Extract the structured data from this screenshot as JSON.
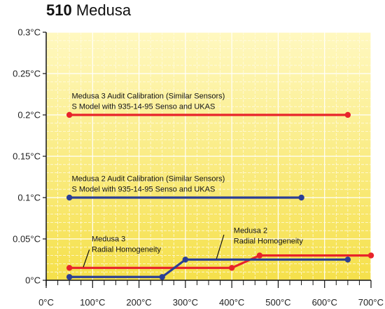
{
  "title_bold": "510",
  "title_rest": "Medusa",
  "chart_data": {
    "type": "line",
    "title": "510 Medusa",
    "xlabel": "",
    "ylabel": "",
    "xlim": [
      0,
      700
    ],
    "ylim": [
      0,
      0.3
    ],
    "x_ticks": [
      0,
      100,
      200,
      300,
      400,
      500,
      600,
      700
    ],
    "x_tick_labels": [
      "0°C",
      "100°C",
      "200°C",
      "300°C",
      "400°C",
      "500°C",
      "600°C",
      "700°C"
    ],
    "y_ticks": [
      0,
      0.05,
      0.1,
      0.15,
      0.2,
      0.25,
      0.3
    ],
    "y_tick_labels": [
      "0°C",
      "0.05°C",
      "0.1°C",
      "0.15°C",
      "0.2°C",
      "0.25°C",
      "0.3°C"
    ],
    "grid": true,
    "colors": {
      "red": "#e8232a",
      "blue": "#2b3f95",
      "grid": "#ffffff",
      "bg_top": "#fff8c0",
      "bg_bottom": "#f5e04a"
    },
    "series": [
      {
        "color": "#e8232a",
        "points": [
          [
            50,
            0.2
          ],
          [
            650,
            0.2
          ]
        ],
        "markers": [
          [
            50,
            0.2
          ],
          [
            650,
            0.2
          ]
        ]
      },
      {
        "color": "#2b3f95",
        "points": [
          [
            50,
            0.1
          ],
          [
            550,
            0.1
          ]
        ],
        "markers": [
          [
            50,
            0.1
          ],
          [
            550,
            0.1
          ]
        ]
      },
      {
        "color": "#e8232a",
        "points": [
          [
            50,
            0.015
          ],
          [
            400,
            0.015
          ],
          [
            460,
            0.03
          ],
          [
            700,
            0.03
          ]
        ],
        "markers": [
          [
            50,
            0.015
          ],
          [
            400,
            0.015
          ],
          [
            460,
            0.03
          ],
          [
            700,
            0.03
          ]
        ]
      },
      {
        "color": "#2b3f95",
        "points": [
          [
            50,
            0.004
          ],
          [
            250,
            0.004
          ],
          [
            300,
            0.025
          ],
          [
            650,
            0.025
          ]
        ],
        "markers": [
          [
            50,
            0.004
          ],
          [
            250,
            0.004
          ],
          [
            300,
            0.025
          ],
          [
            650,
            0.025
          ]
        ]
      }
    ],
    "annotations": [
      {
        "lines": [
          "Medusa 3 Audit Calibration (Similar Sensors)",
          "S Model with 935-14-95 Senso and UKAS"
        ],
        "x": 55,
        "y": 0.22
      },
      {
        "lines": [
          "Medusa 2 Audit Calibration (Similar Sensors)",
          "S Model with 935-14-95 Senso and UKAS"
        ],
        "x": 55,
        "y": 0.12
      },
      {
        "lines": [
          "Medusa 3",
          "Radial Homogeneity"
        ],
        "x": 98,
        "y": 0.047,
        "pointer": [
          [
            93,
            0.037
          ],
          [
            80,
            0.016
          ]
        ]
      },
      {
        "lines": [
          "Medusa 2",
          "Radial Homogeneity"
        ],
        "x": 404,
        "y": 0.057,
        "pointer": [
          [
            383,
            0.055
          ],
          [
            367,
            0.026
          ]
        ]
      }
    ]
  }
}
